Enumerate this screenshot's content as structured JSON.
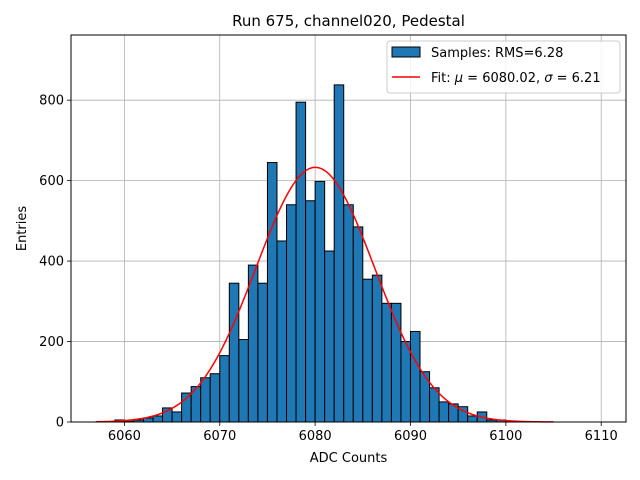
{
  "chart_data": {
    "type": "bar",
    "title": "Run 675, channel020, Pedestal",
    "xlabel": "ADC Counts",
    "ylabel": "Entries",
    "xlim": [
      6054.4,
      6112.6
    ],
    "ylim": [
      0,
      962
    ],
    "xticks": [
      6060,
      6070,
      6080,
      6090,
      6100,
      6110
    ],
    "yticks": [
      0,
      200,
      400,
      600,
      800
    ],
    "grid": true,
    "legend_position": "top-right",
    "bin_width": 1,
    "histogram": {
      "name": "Samples: RMS=6.28",
      "color": "#1f77b4",
      "edgecolor": "#000000",
      "bin_left_edges": [
        6059,
        6060,
        6061,
        6062,
        6063,
        6064,
        6065,
        6066,
        6067,
        6068,
        6069,
        6070,
        6071,
        6072,
        6073,
        6074,
        6075,
        6076,
        6077,
        6078,
        6079,
        6080,
        6081,
        6082,
        6083,
        6084,
        6085,
        6086,
        6087,
        6088,
        6089,
        6090,
        6091,
        6092,
        6093,
        6094,
        6095,
        6096,
        6097,
        6098,
        6099,
        6100,
        6101,
        6102
      ],
      "counts": [
        5,
        2,
        5,
        10,
        15,
        35,
        25,
        72,
        88,
        110,
        120,
        165,
        345,
        205,
        390,
        345,
        645,
        450,
        540,
        795,
        550,
        598,
        425,
        838,
        540,
        485,
        355,
        365,
        295,
        295,
        200,
        225,
        125,
        85,
        50,
        45,
        38,
        15,
        25,
        5,
        5,
        2,
        1,
        1
      ]
    },
    "fit": {
      "name": "Fit: μ = 6080.02, σ = 6.21",
      "color": "#ff0000",
      "mu": 6080.02,
      "sigma": 6.21,
      "amplitude": 633,
      "x_range": [
        6057,
        6105
      ]
    }
  },
  "legend": {
    "histogram_label_prefix": "Samples: RMS=6.28",
    "fit_label_prefix": "Fit: ",
    "fit_mu_symbol": "μ",
    "fit_mu_text": " = 6080.02, ",
    "fit_sigma_symbol": "σ",
    "fit_sigma_text": " = 6.21"
  }
}
